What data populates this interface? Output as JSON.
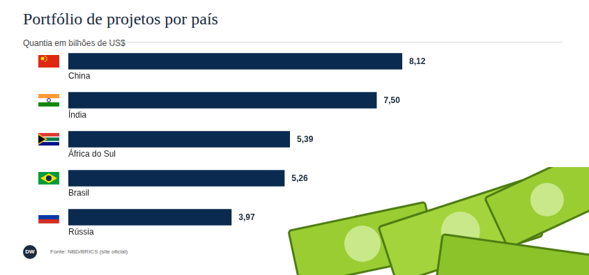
{
  "chart_data": {
    "type": "bar",
    "orientation": "horizontal",
    "title": "Portfólio de projetos por país",
    "subtitle": "Quantia em bilhões de US$",
    "source": "Fonte: NBD/BRICS (site oficial)",
    "logo": "DW",
    "categories": [
      "China",
      "Índia",
      "África do Sul",
      "Brasil",
      "Rússia"
    ],
    "values": [
      8.12,
      7.5,
      5.39,
      5.26,
      3.97
    ],
    "value_labels": [
      "8,12",
      "7,50",
      "5,39",
      "5,26",
      "3,97"
    ],
    "color": "#0b2a4f",
    "xlim": [
      0,
      12
    ],
    "xticks": [],
    "grid": false,
    "data_labels": true,
    "tick_labels": false
  }
}
